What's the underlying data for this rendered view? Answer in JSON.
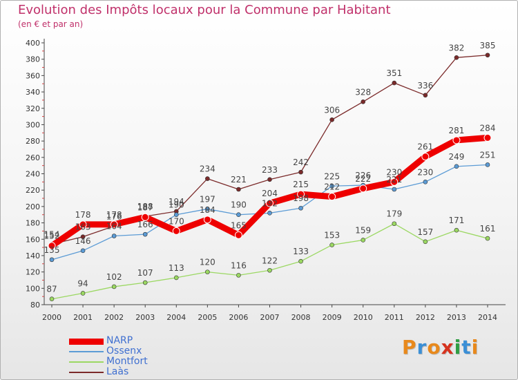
{
  "header": {
    "title": "Evolution des Impôts locaux pour la Commune par Habitant",
    "subtitle": "(en € et par an)"
  },
  "logo": {
    "text": "Proxiti",
    "colors": [
      "#e8891c",
      "#3b8fd6",
      "#e8891c",
      "#d6331f",
      "#2f9e44",
      "#3b8fd6",
      "#e8891c"
    ]
  },
  "chart_data": {
    "type": "line",
    "title": "Evolution des Impôts locaux pour la Commune par Habitant",
    "subtitle": "(en € et par an)",
    "x": [
      2000,
      2001,
      2002,
      2003,
      2004,
      2005,
      2006,
      2007,
      2008,
      2009,
      2010,
      2011,
      2012,
      2013,
      2014
    ],
    "ylim": [
      80,
      400
    ],
    "yticks": [
      80,
      100,
      120,
      140,
      160,
      180,
      200,
      220,
      240,
      260,
      280,
      300,
      320,
      340,
      360,
      380,
      400
    ],
    "grid": false,
    "legend_position": "bottom-left",
    "series": [
      {
        "name": "NARP",
        "color": "#ee0000",
        "values": [
          152,
          178,
          178,
          187,
          170,
          184,
          165,
          204,
          215,
          212,
          222,
          230,
          261,
          281,
          284
        ]
      },
      {
        "name": "Ossenx",
        "color": "#5b9bd5",
        "values": [
          135,
          146,
          164,
          166,
          190,
          197,
          190,
          192,
          198,
          225,
          226,
          221,
          230,
          249,
          251
        ]
      },
      {
        "name": "Montfort",
        "color": "#9bd862",
        "values": [
          87,
          94,
          102,
          107,
          113,
          120,
          116,
          122,
          133,
          153,
          159,
          179,
          157,
          171,
          161
        ]
      },
      {
        "name": "Laàs",
        "color": "#7b2a2a",
        "values": [
          154,
          163,
          176,
          188,
          194,
          234,
          221,
          233,
          242,
          306,
          328,
          351,
          336,
          382,
          385
        ]
      }
    ]
  }
}
